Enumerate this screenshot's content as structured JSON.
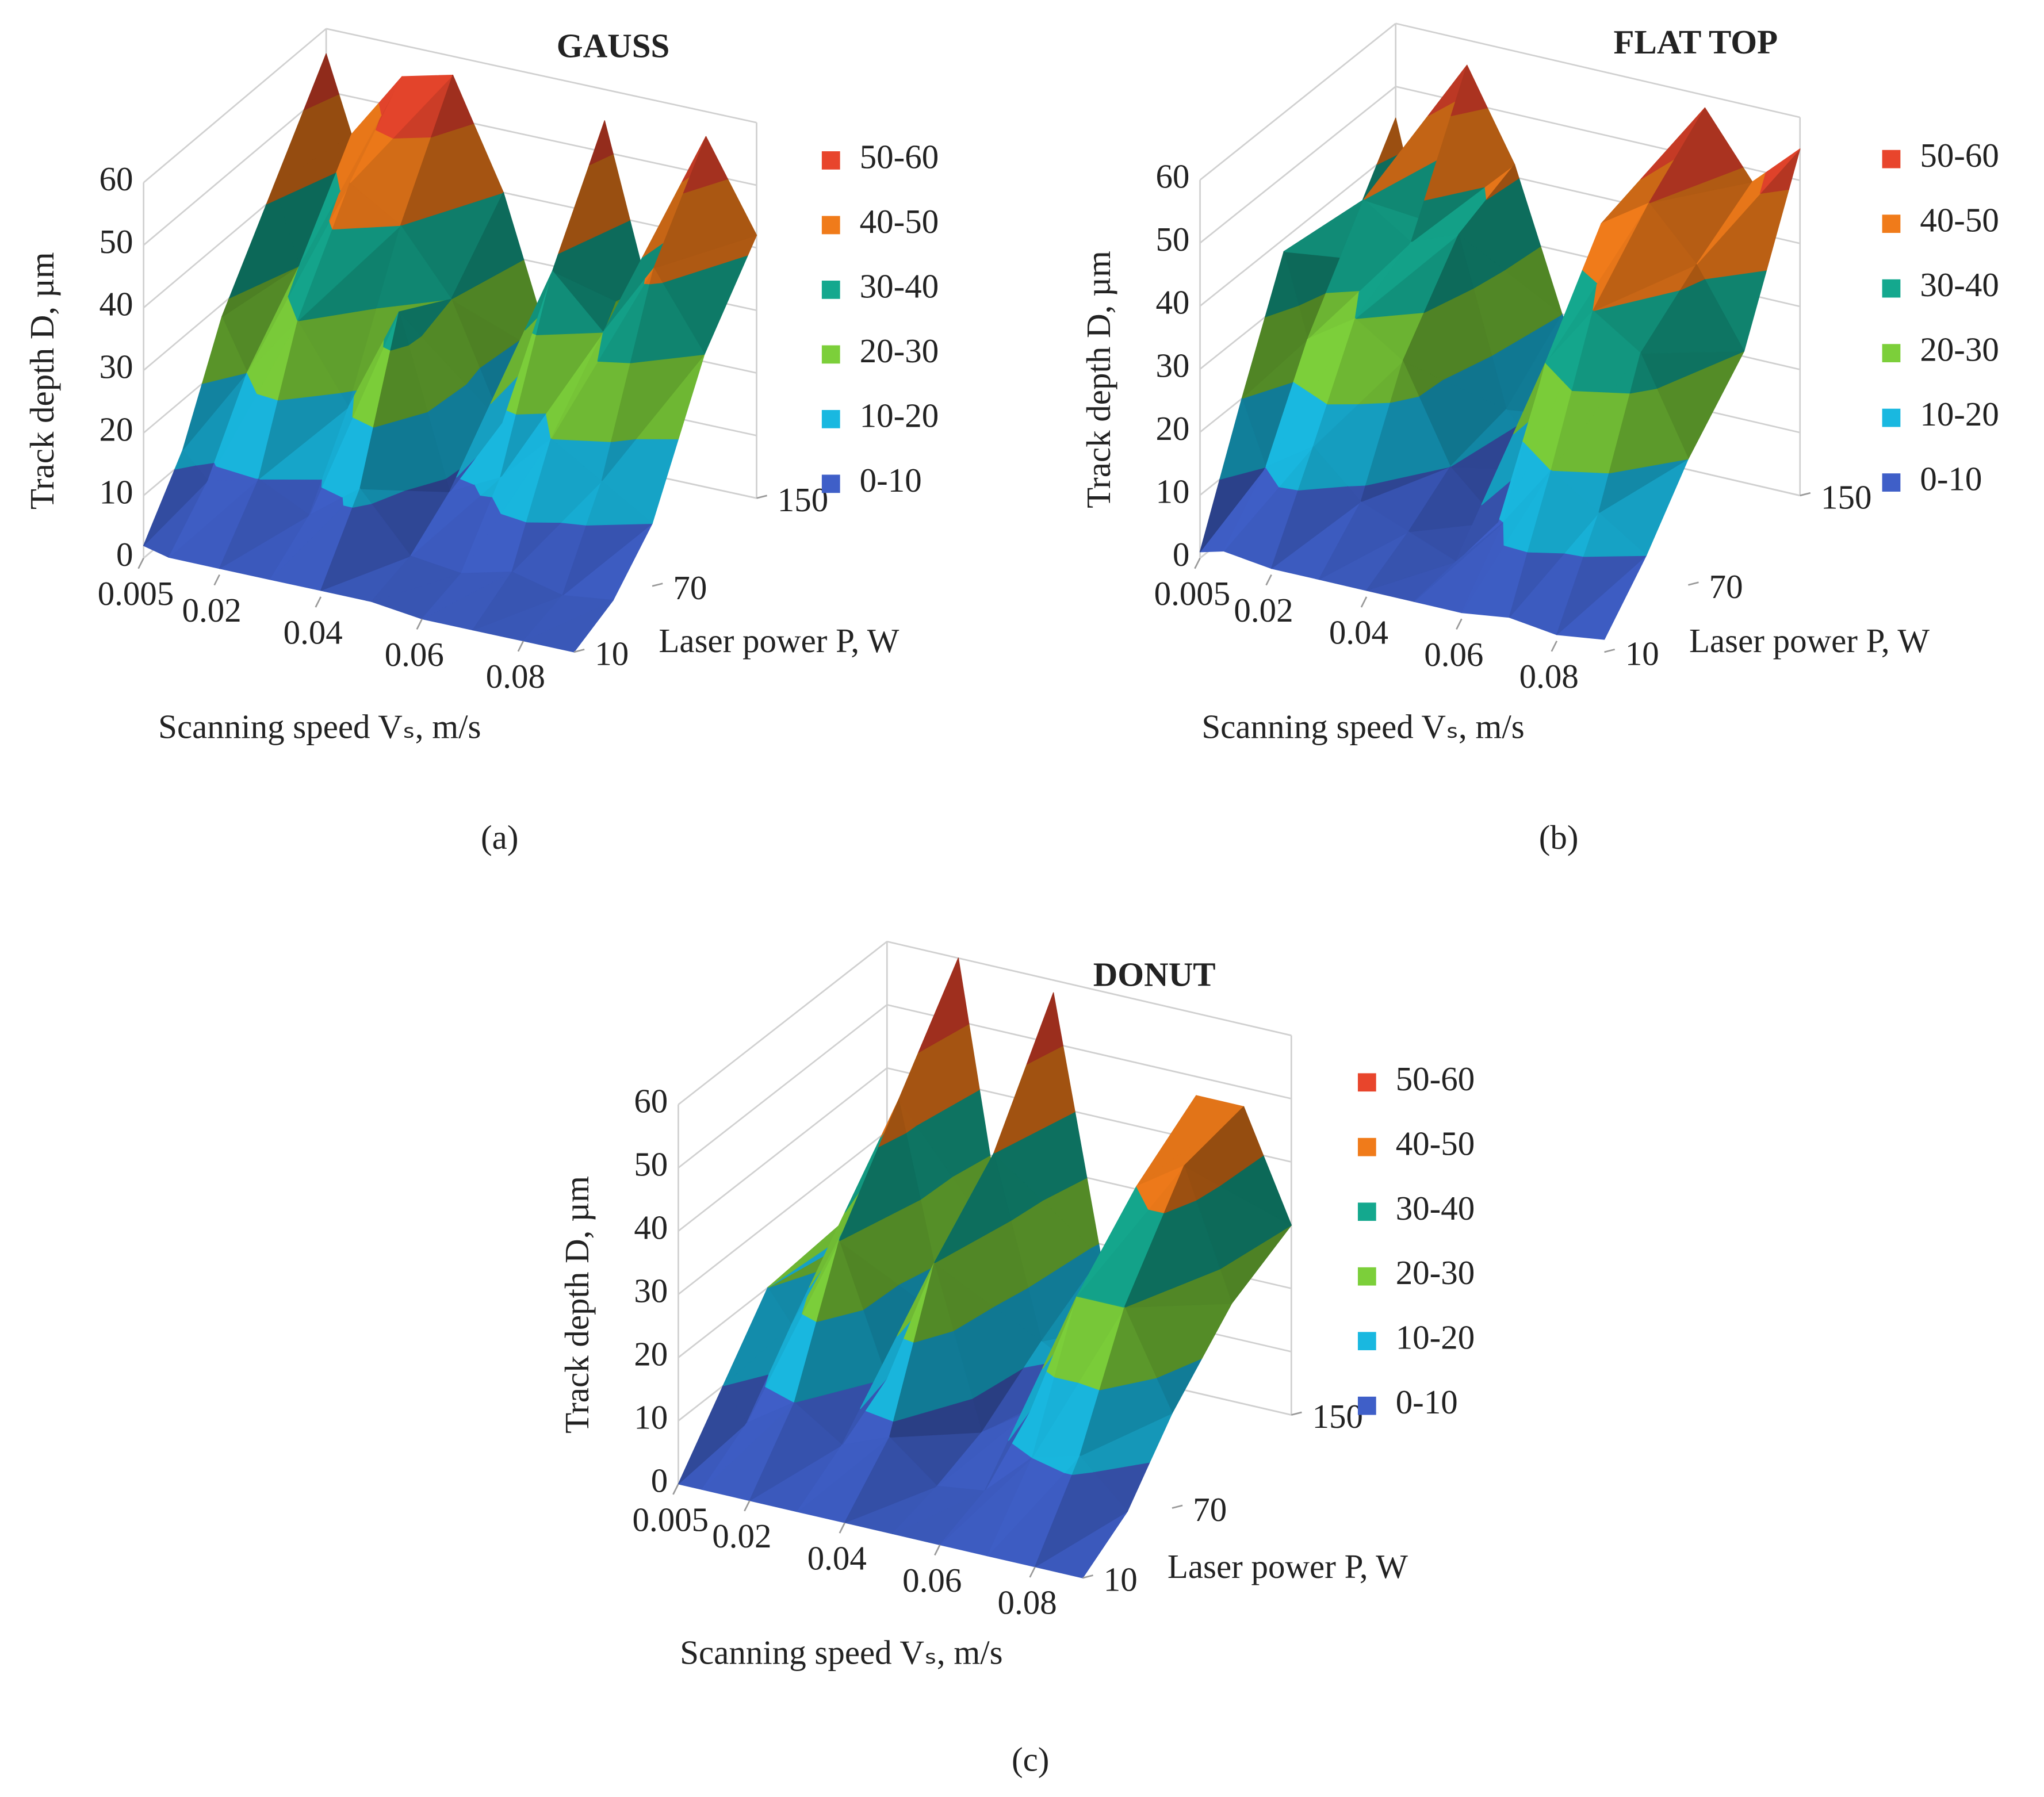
{
  "chart_data": [
    {
      "type": "surface3d",
      "title": "GAUSS",
      "caption": "(a)",
      "z_label": "Track depth D, µm",
      "x_label": "Scanning speed Vₛ, m/s",
      "y_label": "Laser power P, W",
      "x": [
        0.005,
        0.01,
        0.02,
        0.03,
        0.04,
        0.05,
        0.06,
        0.07,
        0.08,
        0.09
      ],
      "y": [
        10,
        40,
        70,
        110,
        150
      ],
      "values": [
        [
          2,
          1,
          1,
          1,
          1,
          1,
          0,
          0,
          0,
          0
        ],
        [
          12,
          8,
          10,
          6,
          12,
          3,
          2,
          4,
          2,
          3
        ],
        [
          28,
          20,
          30,
          18,
          35,
          8,
          12,
          20,
          15,
          10
        ],
        [
          42,
          30,
          45,
          40,
          30,
          12,
          38,
          30,
          42,
          30
        ],
        [
          56,
          44,
          55,
          57,
          40,
          15,
          55,
          25,
          56,
          42
        ]
      ],
      "xlim": [
        0.005,
        0.09
      ],
      "ylim": [
        10,
        150
      ],
      "zlim": [
        0,
        60
      ],
      "xticks": [
        0.005,
        0.02,
        0.04,
        0.06,
        0.08
      ],
      "yticks": [
        10,
        70,
        150
      ],
      "zticks": [
        0,
        10,
        20,
        30,
        40,
        50,
        60
      ],
      "legend": [
        {
          "label": "50-60",
          "color": "#e8452c"
        },
        {
          "label": "40-50",
          "color": "#f07b1a"
        },
        {
          "label": "30-40",
          "color": "#14a88e"
        },
        {
          "label": "20-30",
          "color": "#7ccf3a"
        },
        {
          "label": "10-20",
          "color": "#19b8e0"
        },
        {
          "label": "0-10",
          "color": "#3f5fc8"
        }
      ]
    },
    {
      "type": "surface3d",
      "title": "FLAT TOP",
      "caption": "(b)",
      "z_label": "Track depth D, µm",
      "x_label": "Scanning speed Vₛ, m/s",
      "y_label": "Laser power P, W",
      "x": [
        0.005,
        0.01,
        0.02,
        0.03,
        0.04,
        0.05,
        0.06,
        0.07,
        0.08,
        0.09
      ],
      "y": [
        10,
        40,
        70,
        110,
        150
      ],
      "values": [
        [
          1,
          2,
          1,
          1,
          1,
          1,
          1,
          2,
          1,
          2
        ],
        [
          20,
          10,
          15,
          8,
          5,
          2,
          10,
          20,
          15,
          10
        ],
        [
          38,
          25,
          30,
          25,
          10,
          3,
          30,
          40,
          35,
          20
        ],
        [
          30,
          40,
          35,
          38,
          12,
          4,
          45,
          50,
          42,
          30
        ],
        [
          45,
          30,
          56,
          42,
          20,
          5,
          40,
          58,
          48,
          55
        ]
      ],
      "xlim": [
        0.005,
        0.09
      ],
      "ylim": [
        10,
        150
      ],
      "zlim": [
        0,
        60
      ],
      "xticks": [
        0.005,
        0.02,
        0.04,
        0.06,
        0.08
      ],
      "yticks": [
        10,
        70,
        150
      ],
      "zticks": [
        0,
        10,
        20,
        30,
        40,
        50,
        60
      ],
      "legend": [
        {
          "label": "50-60",
          "color": "#e8452c"
        },
        {
          "label": "40-50",
          "color": "#f07b1a"
        },
        {
          "label": "30-40",
          "color": "#14a88e"
        },
        {
          "label": "20-30",
          "color": "#7ccf3a"
        },
        {
          "label": "10-20",
          "color": "#19b8e0"
        },
        {
          "label": "0-10",
          "color": "#3f5fc8"
        }
      ]
    },
    {
      "type": "surface3d",
      "title": "DONUT",
      "caption": "(c)",
      "z_label": "Track depth D, µm",
      "x_label": "Scanning speed Vₛ, m/s",
      "y_label": "Laser power P, W",
      "x": [
        0.005,
        0.01,
        0.02,
        0.03,
        0.04,
        0.05,
        0.06,
        0.07,
        0.08,
        0.09
      ],
      "y": [
        10,
        40,
        70,
        110,
        150
      ],
      "values": [
        [
          0,
          0,
          0,
          0,
          0,
          0,
          0,
          0,
          0,
          0
        ],
        [
          10,
          5,
          10,
          5,
          8,
          2,
          3,
          10,
          12,
          5
        ],
        [
          20,
          15,
          30,
          10,
          30,
          5,
          10,
          30,
          30,
          15
        ],
        [
          18,
          25,
          45,
          12,
          40,
          12,
          8,
          40,
          45,
          25
        ],
        [
          15,
          20,
          60,
          15,
          58,
          18,
          10,
          47,
          47,
          30
        ]
      ],
      "xlim": [
        0.005,
        0.09
      ],
      "ylim": [
        10,
        150
      ],
      "zlim": [
        0,
        60
      ],
      "xticks": [
        0.005,
        0.02,
        0.04,
        0.06,
        0.08
      ],
      "yticks": [
        10,
        70,
        150
      ],
      "zticks": [
        0,
        10,
        20,
        30,
        40,
        50,
        60
      ],
      "legend": [
        {
          "label": "50-60",
          "color": "#e8452c"
        },
        {
          "label": "40-50",
          "color": "#f07b1a"
        },
        {
          "label": "30-40",
          "color": "#14a88e"
        },
        {
          "label": "20-30",
          "color": "#7ccf3a"
        },
        {
          "label": "10-20",
          "color": "#19b8e0"
        },
        {
          "label": "0-10",
          "color": "#3f5fc8"
        }
      ]
    }
  ]
}
